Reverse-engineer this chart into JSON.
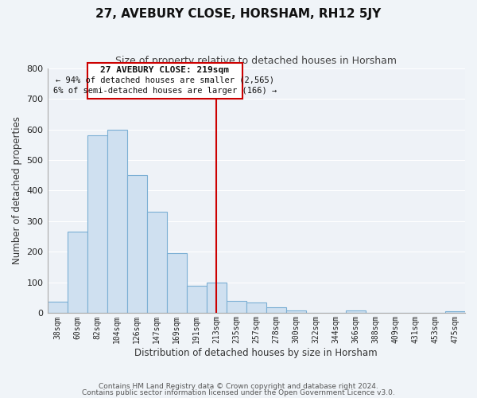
{
  "title": "27, AVEBURY CLOSE, HORSHAM, RH12 5JY",
  "subtitle": "Size of property relative to detached houses in Horsham",
  "xlabel": "Distribution of detached houses by size in Horsham",
  "ylabel": "Number of detached properties",
  "bar_labels": [
    "38sqm",
    "60sqm",
    "82sqm",
    "104sqm",
    "126sqm",
    "147sqm",
    "169sqm",
    "191sqm",
    "213sqm",
    "235sqm",
    "257sqm",
    "278sqm",
    "300sqm",
    "322sqm",
    "344sqm",
    "366sqm",
    "388sqm",
    "409sqm",
    "431sqm",
    "453sqm",
    "475sqm"
  ],
  "bar_values": [
    38,
    265,
    580,
    600,
    450,
    330,
    195,
    90,
    100,
    40,
    35,
    20,
    10,
    0,
    0,
    8,
    0,
    0,
    0,
    0,
    6
  ],
  "bar_color": "#cfe0f0",
  "bar_edge_color": "#7bafd4",
  "vline_index": 8,
  "vline_color": "#cc0000",
  "ylim": [
    0,
    800
  ],
  "yticks": [
    0,
    100,
    200,
    300,
    400,
    500,
    600,
    700,
    800
  ],
  "annotation_title": "27 AVEBURY CLOSE: 219sqm",
  "annotation_line1": "← 94% of detached houses are smaller (2,565)",
  "annotation_line2": "6% of semi-detached houses are larger (166) →",
  "annotation_box_color": "#ffffff",
  "annotation_box_edge": "#cc0000",
  "footer1": "Contains HM Land Registry data © Crown copyright and database right 2024.",
  "footer2": "Contains public sector information licensed under the Open Government Licence v3.0.",
  "background_color": "#f0f4f8",
  "plot_bg_color": "#eef2f7",
  "grid_color": "#ffffff"
}
